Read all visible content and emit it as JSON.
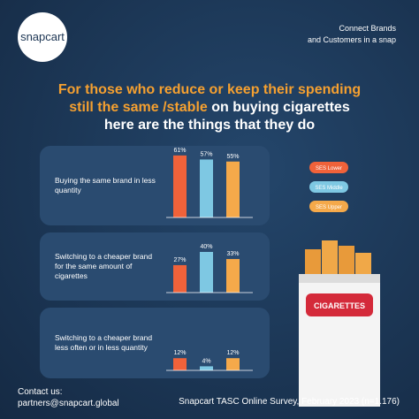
{
  "header": {
    "logo": "snapcart",
    "tagline": [
      "Connect Brands",
      "and Customers in a snap"
    ]
  },
  "title": [
    [
      {
        "text": "For those who reduce or keep their spending",
        "color": "#f5a030"
      }
    ],
    [
      {
        "text": "still the same /stable",
        "color": "#f5a030"
      },
      {
        "text": " on buying cigarettes",
        "color": "#ffffff"
      }
    ],
    [
      {
        "text": "here are the things that they do",
        "color": "#ffffff"
      }
    ]
  ],
  "chart_data": [
    {
      "type": "bar",
      "categories": [
        "Buying the same brand in less quantity"
      ],
      "series": [
        {
          "name": "SES Lower",
          "color": "#f0623a",
          "values": [
            61
          ],
          "value_labels": [
            "61%"
          ]
        },
        {
          "name": "SES Middle",
          "color": "#7ec8e3",
          "values": [
            57
          ],
          "value_labels": [
            "57%"
          ]
        },
        {
          "name": "SES Upper",
          "color": "#f5a94a",
          "values": [
            55
          ],
          "value_labels": [
            "55%"
          ]
        }
      ]
    },
    {
      "type": "bar",
      "categories": [
        "Switching to a cheaper brand for the same amount of cigarettes"
      ],
      "series": [
        {
          "name": "SES Lower",
          "color": "#f0623a",
          "values": [
            27
          ],
          "value_labels": [
            "27%"
          ]
        },
        {
          "name": "SES Middle",
          "color": "#7ec8e3",
          "values": [
            40
          ],
          "value_labels": [
            "40%"
          ]
        },
        {
          "name": "SES Upper",
          "color": "#f5a94a",
          "values": [
            33
          ],
          "value_labels": [
            "33%"
          ]
        }
      ]
    },
    {
      "type": "bar",
      "categories": [
        "Switching to a cheaper brand less often or in less quantity"
      ],
      "series": [
        {
          "name": "SES Lower",
          "color": "#f0623a",
          "values": [
            12
          ],
          "value_labels": [
            "12%"
          ]
        },
        {
          "name": "SES Middle",
          "color": "#7ec8e3",
          "values": [
            4
          ],
          "value_labels": [
            "4%"
          ]
        },
        {
          "name": "SES Upper",
          "color": "#f5a94a",
          "values": [
            12
          ],
          "value_labels": [
            "12%"
          ]
        }
      ]
    }
  ],
  "pack_label": "CIGARETTES",
  "footer": {
    "contact": [
      "Contact us:",
      "partners@snapcart.global"
    ],
    "source": "Snapcart TASC Online Survey, February 2023 (n=1.176)"
  }
}
